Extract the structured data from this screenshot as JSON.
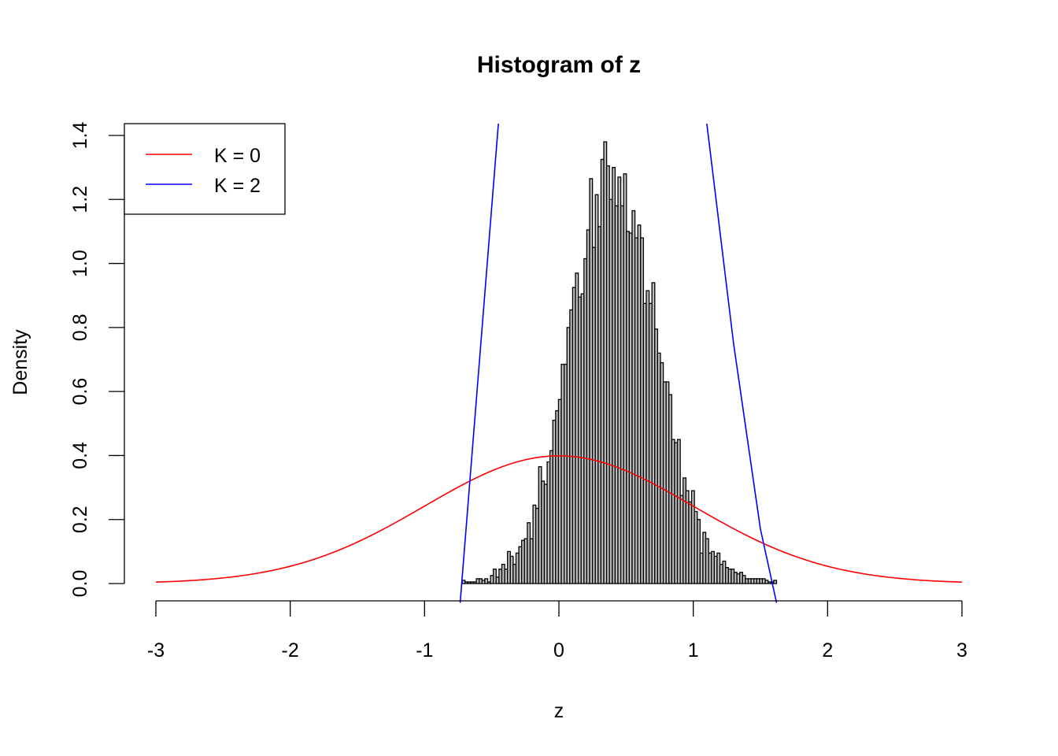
{
  "chart_data": {
    "type": "bar",
    "title": "Histogram of z",
    "xlabel": "z",
    "ylabel": "Density",
    "xlim": [
      -3,
      3
    ],
    "ylim": [
      0,
      1.4
    ],
    "x_ticks": [
      "-3",
      "-2",
      "-1",
      "0",
      "1",
      "2",
      "3"
    ],
    "y_ticks": [
      "0.0",
      "0.2",
      "0.4",
      "0.6",
      "0.8",
      "1.0",
      "1.2",
      "1.4"
    ],
    "grid": false,
    "histogram": {
      "bin_start": -0.72,
      "bin_end": 1.62,
      "fill": "#bebebe",
      "border": "#000000",
      "densities": [
        0.01,
        0.005,
        0.005,
        0.005,
        0.005,
        0.015,
        0.015,
        0.01,
        0.015,
        0.005,
        0.025,
        0.045,
        0.02,
        0.045,
        0.06,
        0.045,
        0.1,
        0.085,
        0.06,
        0.095,
        0.115,
        0.135,
        0.14,
        0.19,
        0.14,
        0.245,
        0.235,
        0.365,
        0.32,
        0.31,
        0.38,
        0.415,
        0.51,
        0.54,
        0.575,
        0.685,
        0.685,
        0.8,
        0.855,
        0.925,
        0.97,
        0.895,
        0.905,
        1.015,
        1.105,
        1.265,
        1.05,
        1.215,
        1.115,
        1.325,
        1.38,
        1.305,
        1.2,
        1.3,
        1.18,
        1.27,
        1.18,
        1.28,
        1.1,
        1.095,
        1.165,
        1.08,
        1.12,
        1.08,
        0.875,
        0.915,
        0.875,
        0.94,
        0.795,
        0.72,
        0.69,
        0.63,
        0.63,
        0.59,
        0.45,
        0.44,
        0.45,
        0.275,
        0.33,
        0.29,
        0.255,
        0.29,
        0.225,
        0.2,
        0.095,
        0.16,
        0.14,
        0.095,
        0.1,
        0.085,
        0.095,
        0.06,
        0.07,
        0.05,
        0.045,
        0.045,
        0.035,
        0.03,
        0.035,
        0.025,
        0.015,
        0.015,
        0.015,
        0.015,
        0.015,
        0.015,
        0.015,
        0.01,
        0.005,
        0.005,
        0.01
      ]
    },
    "series": [
      {
        "name": "K = 0",
        "color": "#ff0000",
        "kind": "standard normal density",
        "mean": 0,
        "sd": 1
      },
      {
        "name": "K = 2",
        "color": "#0000ff",
        "kind": "expansion density",
        "points": [
          [
            -0.735,
            -0.06
          ],
          [
            -0.45,
            1.44
          ],
          [
            1.1,
            1.44
          ],
          [
            1.3,
            0.75
          ],
          [
            1.5,
            0.17
          ],
          [
            1.62,
            -0.06
          ]
        ]
      }
    ],
    "legend": {
      "placement": "top-left",
      "entries": [
        "K = 0",
        "K = 2"
      ]
    }
  }
}
